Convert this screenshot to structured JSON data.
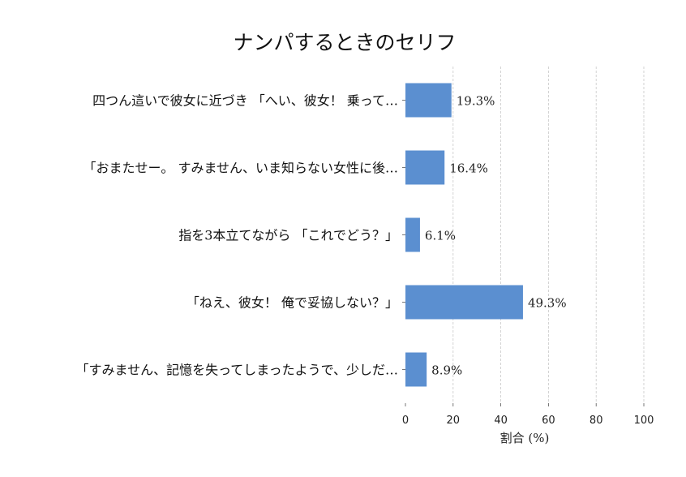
{
  "chart_data": {
    "type": "bar",
    "orientation": "horizontal",
    "title": "ナンパするときのセリフ",
    "xlabel": "割合 (%)",
    "ylabel": "",
    "xlim": [
      0,
      100
    ],
    "xticks": [
      "0",
      "20",
      "40",
      "60",
      "80",
      "100"
    ],
    "grid": "x-dashed",
    "categories": [
      "四つん這いで彼女に近づき 「へい、彼女！ 乗って…",
      "「おまたせー。 すみません、いま知らない女性に後…",
      "指を3本立てながら 「これでどう？」",
      "「ねえ、彼女！ 俺で妥協しない？」",
      "「すみません、記憶を失ってしまったようで、少しだ…"
    ],
    "values": [
      19.3,
      16.4,
      6.1,
      49.3,
      8.9
    ],
    "data_labels": [
      "19.3%",
      "16.4%",
      "6.1%",
      "49.3%",
      "8.9%"
    ],
    "bar_color": "#5b8fd0"
  }
}
